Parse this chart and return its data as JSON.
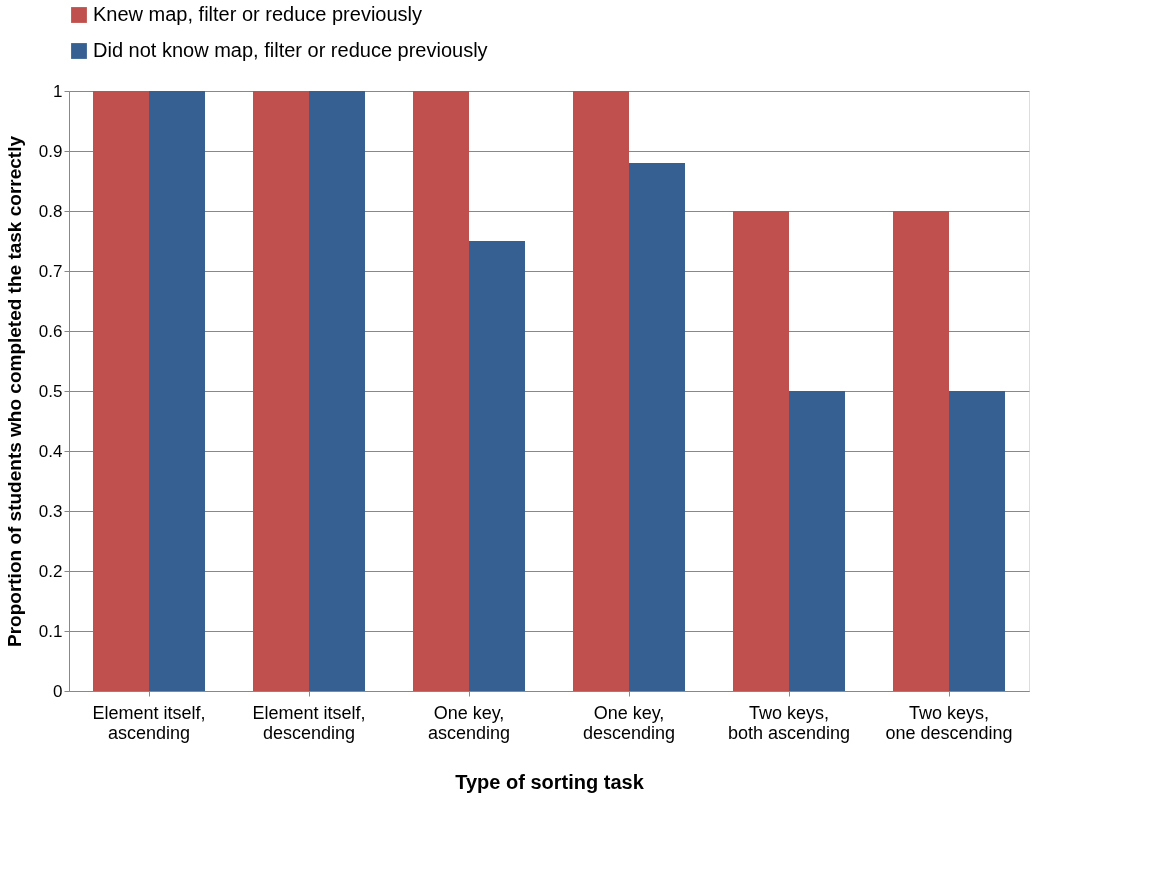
{
  "chart_data": {
    "type": "bar",
    "xlabel": "Type of sorting task",
    "ylabel": "Proportion of students who completed the task correctly",
    "categories": [
      "Element itself, ascending",
      "Element itself, descending",
      "One key, ascending",
      "One key, descending",
      "Two keys, both ascending",
      "Two keys, one descending"
    ],
    "series": [
      {
        "name": "Knew map, filter or reduce previously",
        "color": "#c0504d",
        "values": [
          1,
          1,
          1,
          1,
          0.8,
          0.8
        ]
      },
      {
        "name": "Did not know map, filter or reduce previously",
        "color": "#366092",
        "values": [
          1,
          1,
          0.75,
          0.88,
          0.5,
          0.5
        ]
      }
    ],
    "ylim": [
      0,
      1
    ],
    "yticks": [
      0,
      0.1,
      0.2,
      0.3,
      0.4,
      0.5,
      0.6,
      0.7,
      0.8,
      0.9,
      1
    ],
    "grid": "y",
    "legend": "top"
  }
}
